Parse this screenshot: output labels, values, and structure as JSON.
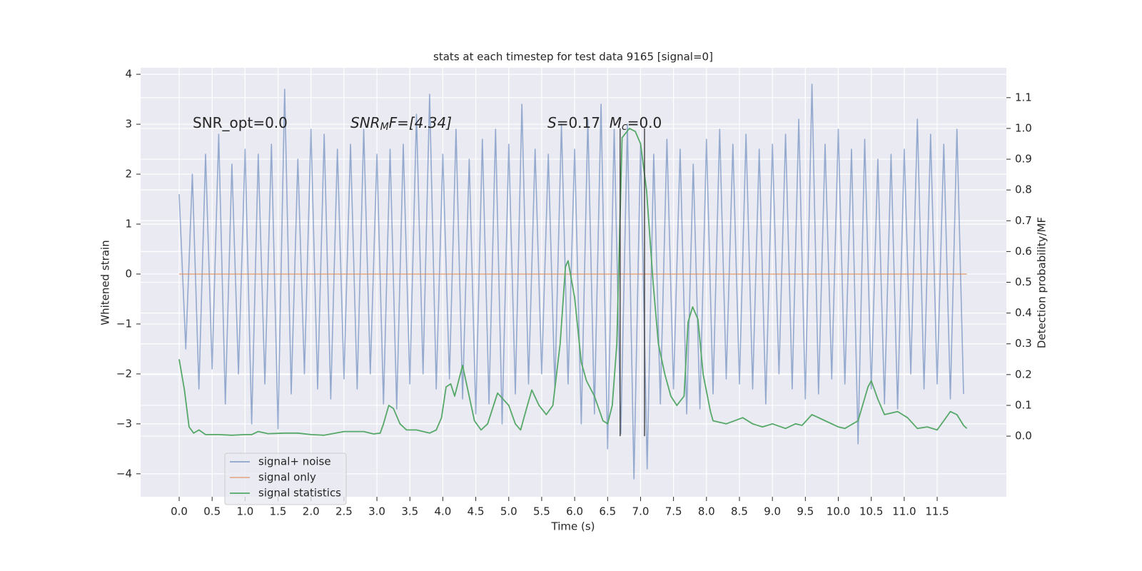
{
  "chart_data": {
    "type": "line",
    "title": "stats at each timestep for test data 9165 [signal=0]",
    "xlabel": "Time (s)",
    "ylabel": "Whitened strain",
    "y2label": "Detection probability/MF",
    "xlim": [
      -0.585,
      12.55
    ],
    "ylim": [
      -4.46,
      4.13
    ],
    "y2lim": [
      -0.197,
      1.197
    ],
    "xticks": [
      {
        "value": 0,
        "label": "0.0"
      },
      0.5,
      {
        "value": 1,
        "label": "1.0"
      },
      1.5,
      {
        "value": 2,
        "label": "2.0"
      },
      2.5,
      {
        "value": 3,
        "label": "3.0"
      },
      3.5,
      {
        "value": 4,
        "label": "4.0"
      },
      4.5,
      {
        "value": 5,
        "label": "5.0"
      },
      5.5,
      {
        "value": 6,
        "label": "6.0"
      },
      6.5,
      {
        "value": 7,
        "label": "7.0"
      },
      7.5,
      {
        "value": 8,
        "label": "8.0"
      },
      8.5,
      {
        "value": 9,
        "label": "9.0"
      },
      9.5,
      {
        "value": 10,
        "label": "10.0"
      },
      10.5,
      {
        "value": 11,
        "label": "11.0"
      },
      11.5
    ],
    "yticks": [
      {
        "value": -4,
        "label": "−4"
      },
      {
        "value": -3,
        "label": "−3"
      },
      {
        "value": -2,
        "label": "−2"
      },
      {
        "value": -1,
        "label": "−1"
      },
      0,
      1,
      2,
      3,
      4
    ],
    "y2ticks": [
      {
        "value": 0,
        "label": "0.0"
      },
      0.1,
      0.2,
      0.3,
      0.4,
      0.5,
      0.6,
      0.7,
      0.8,
      0.9,
      {
        "value": 1,
        "label": "1.0"
      },
      1.1
    ],
    "grid": true,
    "legend": "lower left",
    "series": [
      {
        "name": "signal+ noise",
        "color": "#4c72b0",
        "x": [
          0.0,
          0.1,
          0.2,
          0.3,
          0.4,
          0.5,
          0.6,
          0.7,
          0.8,
          0.9,
          1.0,
          1.1,
          1.2,
          1.3,
          1.4,
          1.5,
          1.6,
          1.7,
          1.8,
          1.9,
          2.0,
          2.1,
          2.2,
          2.3,
          2.4,
          2.5,
          2.6,
          2.7,
          2.8,
          2.9,
          3.0,
          3.1,
          3.2,
          3.3,
          3.4,
          3.5,
          3.6,
          3.7,
          3.8,
          3.9,
          4.0,
          4.1,
          4.2,
          4.3,
          4.4,
          4.5,
          4.6,
          4.7,
          4.8,
          4.9,
          5.0,
          5.1,
          5.2,
          5.3,
          5.4,
          5.5,
          5.6,
          5.7,
          5.8,
          5.9,
          6.0,
          6.1,
          6.2,
          6.3,
          6.4,
          6.5,
          6.6,
          6.7,
          6.8,
          6.9,
          7.0,
          7.1,
          7.2,
          7.3,
          7.4,
          7.5,
          7.6,
          7.7,
          7.8,
          7.9,
          8.0,
          8.1,
          8.2,
          8.3,
          8.4,
          8.5,
          8.6,
          8.7,
          8.8,
          8.9,
          9.0,
          9.1,
          9.2,
          9.3,
          9.4,
          9.5,
          9.6,
          9.7,
          9.8,
          9.9,
          10.0,
          10.1,
          10.2,
          10.3,
          10.4,
          10.5,
          10.6,
          10.7,
          10.8,
          10.9,
          11.0,
          11.1,
          11.2,
          11.3,
          11.4,
          11.5,
          11.6,
          11.7,
          11.8,
          11.9
        ],
        "values": [
          1.6,
          -1.5,
          2.0,
          -2.3,
          2.4,
          -1.9,
          2.8,
          -2.6,
          2.2,
          -2.0,
          2.5,
          -3.0,
          2.4,
          -2.2,
          2.6,
          -3.1,
          3.7,
          -2.4,
          2.3,
          -2.0,
          2.9,
          -2.3,
          2.8,
          -2.5,
          2.5,
          -2.1,
          2.6,
          -2.3,
          2.9,
          -2.0,
          2.4,
          -2.6,
          2.5,
          -2.7,
          2.6,
          -2.2,
          3.2,
          -2.0,
          3.6,
          -2.3,
          2.4,
          -2.1,
          2.9,
          -2.5,
          2.3,
          -2.8,
          2.7,
          -2.6,
          2.9,
          -3.0,
          2.6,
          -2.4,
          3.4,
          -2.2,
          2.5,
          -2.0,
          2.4,
          -2.3,
          3.0,
          -2.2,
          2.5,
          -3.0,
          3.1,
          -2.8,
          3.4,
          -3.5,
          2.9,
          -3.2,
          3.0,
          -4.1,
          2.6,
          -3.9,
          2.4,
          -2.6,
          2.7,
          -2.3,
          2.5,
          -2.8,
          2.2,
          -2.7,
          2.7,
          -2.4,
          2.9,
          -2.1,
          2.6,
          -2.2,
          2.8,
          -2.3,
          2.5,
          -2.6,
          2.6,
          -2.0,
          2.8,
          -2.3,
          3.1,
          -2.5,
          3.8,
          -2.4,
          2.6,
          -2.1,
          2.9,
          -2.2,
          2.5,
          -3.4,
          2.7,
          -2.3,
          2.3,
          -2.6,
          2.4,
          -2.7,
          2.5,
          -2.0,
          3.1,
          -2.3,
          2.8,
          -2.2,
          2.6,
          -2.5,
          2.9,
          -2.4
        ]
      },
      {
        "name": "signal only",
        "color": "#dd8452",
        "x": [
          0,
          11.95
        ],
        "values": [
          0,
          0
        ]
      },
      {
        "name": "signal statistics",
        "color": "#55a868",
        "axis": "y2",
        "x": [
          0,
          0.08,
          0.15,
          0.22,
          0.3,
          0.4,
          0.6,
          0.8,
          1.0,
          1.1,
          1.2,
          1.35,
          1.6,
          1.8,
          2.0,
          2.2,
          2.5,
          2.8,
          2.95,
          3.05,
          3.1,
          3.18,
          3.25,
          3.35,
          3.45,
          3.6,
          3.8,
          3.9,
          3.98,
          4.05,
          4.12,
          4.18,
          4.3,
          4.48,
          4.58,
          4.68,
          4.83,
          5.0,
          5.1,
          5.18,
          5.27,
          5.35,
          5.46,
          5.57,
          5.67,
          5.78,
          5.86,
          5.9,
          6.0,
          6.1,
          6.18,
          6.3,
          6.43,
          6.5,
          6.57,
          6.64,
          6.72,
          6.83,
          6.92,
          7.0,
          7.09,
          7.19,
          7.27,
          7.37,
          7.46,
          7.55,
          7.66,
          7.72,
          7.79,
          7.87,
          7.95,
          8.06,
          8.1,
          8.3,
          8.55,
          8.7,
          8.85,
          9.0,
          9.2,
          9.35,
          9.45,
          9.6,
          9.8,
          10.0,
          10.1,
          10.3,
          10.45,
          10.5,
          10.6,
          10.7,
          10.9,
          11.05,
          11.2,
          11.35,
          11.5,
          11.6,
          11.7,
          11.8,
          11.9,
          11.95
        ],
        "values": [
          0.25,
          0.15,
          0.03,
          0.01,
          0.02,
          0.005,
          0.005,
          0.003,
          0.005,
          0.005,
          0.015,
          0.008,
          0.01,
          0.01,
          0.005,
          0.003,
          0.015,
          0.015,
          0.007,
          0.01,
          0.04,
          0.1,
          0.09,
          0.04,
          0.02,
          0.02,
          0.01,
          0.02,
          0.06,
          0.16,
          0.17,
          0.13,
          0.23,
          0.05,
          0.02,
          0.04,
          0.14,
          0.1,
          0.04,
          0.02,
          0.09,
          0.15,
          0.1,
          0.07,
          0.1,
          0.3,
          0.55,
          0.57,
          0.45,
          0.24,
          0.18,
          0.13,
          0.05,
          0.04,
          0.1,
          0.3,
          0.97,
          1.0,
          0.99,
          0.95,
          0.8,
          0.5,
          0.3,
          0.2,
          0.13,
          0.1,
          0.13,
          0.37,
          0.42,
          0.38,
          0.2,
          0.08,
          0.05,
          0.04,
          0.06,
          0.04,
          0.03,
          0.04,
          0.025,
          0.04,
          0.035,
          0.07,
          0.05,
          0.03,
          0.025,
          0.05,
          0.16,
          0.18,
          0.12,
          0.07,
          0.08,
          0.06,
          0.025,
          0.03,
          0.02,
          0.05,
          0.08,
          0.07,
          0.035,
          0.025
        ]
      }
    ],
    "vlines": {
      "x": [
        6.69,
        7.06
      ],
      "ymin": 0,
      "ymax": 1.0,
      "axis": "y2",
      "color": "#333333"
    },
    "annotations": [
      [
        "SNR_opt=0.0"
      ],
      [
        "SNR",
        "M",
        "F=[4.34]"
      ],
      [
        "S",
        "=0.17  ",
        "M",
        "c",
        "=0.0"
      ]
    ]
  }
}
